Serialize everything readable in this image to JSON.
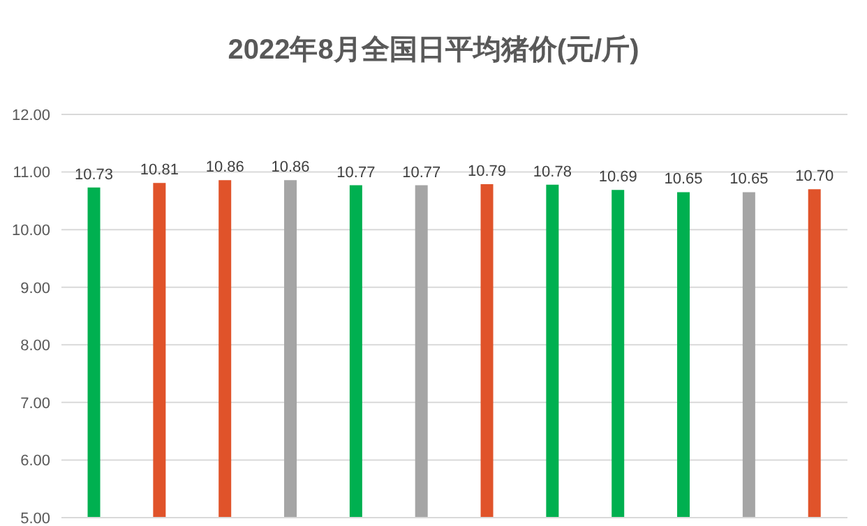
{
  "chart_data": {
    "type": "bar",
    "title": "2022年8月全国日平均猪价(元/斤)",
    "categories": [
      null,
      null,
      null,
      null,
      null,
      null,
      null,
      null,
      null,
      null,
      null,
      null
    ],
    "values": [
      10.73,
      10.81,
      10.86,
      10.86,
      10.77,
      10.77,
      10.79,
      10.78,
      10.69,
      10.65,
      10.65,
      10.7
    ],
    "colors": [
      "#00b050",
      "#e0532a",
      "#e0532a",
      "#a5a5a5",
      "#00b050",
      "#a5a5a5",
      "#e0532a",
      "#00b050",
      "#00b050",
      "#00b050",
      "#a5a5a5",
      "#e0532a"
    ],
    "value_labels": [
      "10.73",
      "10.81",
      "10.86",
      "10.86",
      "10.77",
      "10.77",
      "10.79",
      "10.78",
      "10.69",
      "10.65",
      "10.65",
      "10.70"
    ],
    "ylim": [
      5,
      12
    ],
    "yticks": [
      {
        "value": 5,
        "label": "5.00"
      },
      {
        "value": 6,
        "label": "6.00"
      },
      {
        "value": 7,
        "label": "7.00"
      },
      {
        "value": 8,
        "label": "8.00"
      },
      {
        "value": 9,
        "label": "9.00"
      },
      {
        "value": 10,
        "label": "10.00"
      },
      {
        "value": 11,
        "label": "11.00"
      },
      {
        "value": 12,
        "label": "12.00"
      }
    ],
    "grid": "y",
    "tick_labels": "y"
  }
}
